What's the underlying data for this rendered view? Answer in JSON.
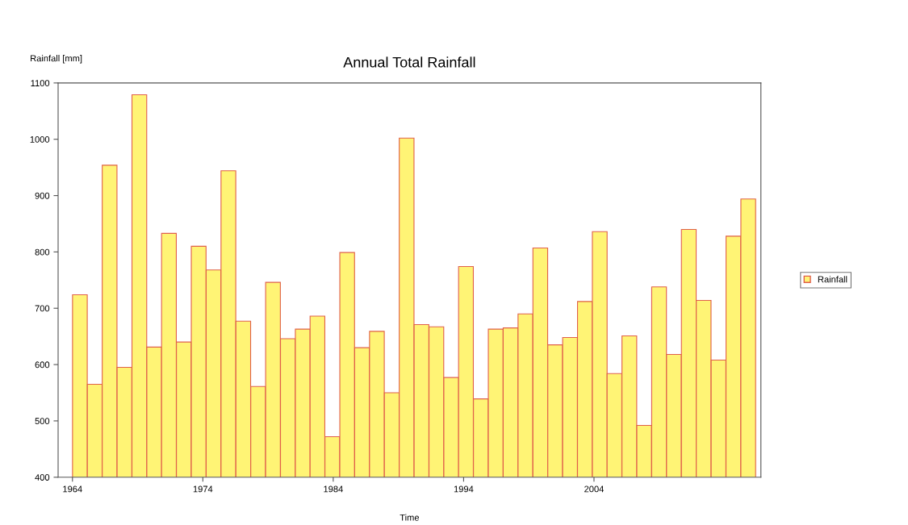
{
  "chart_data": {
    "type": "bar",
    "title": "Annual Total Rainfall",
    "ylabel": "Rainfall [mm]",
    "xlabel": "Time",
    "x": [
      1964.57,
      1965.71,
      1966.85,
      1967.99,
      1969.13,
      1970.27,
      1971.4,
      1972.54,
      1973.68,
      1974.82,
      1975.96,
      1977.1,
      1978.24,
      1979.38,
      1980.52,
      1981.66,
      1982.79,
      1983.93,
      1985.07,
      1986.21,
      1987.35,
      1988.49,
      1989.63,
      1990.77,
      1991.91,
      1993.05,
      1994.18,
      1995.32,
      1996.46,
      1997.6,
      1998.74,
      1999.88,
      2001.02,
      2002.16,
      2003.3,
      2004.44,
      2005.57,
      2006.71,
      2007.85,
      2008.99,
      2010.13,
      2011.27,
      2012.41,
      2013.55,
      2014.69,
      2015.83
    ],
    "series": [
      {
        "name": "Rainfall",
        "color": "#fff475",
        "values": [
          724,
          565,
          954,
          595,
          1079,
          631,
          833,
          640,
          810,
          768,
          944,
          677,
          561,
          746,
          646,
          663,
          686,
          472,
          799,
          630,
          659,
          550,
          1002,
          671,
          667,
          577,
          774,
          539,
          663,
          665,
          690,
          807,
          635,
          648,
          712,
          836,
          584,
          651,
          492,
          738,
          618,
          840,
          714,
          608,
          828,
          894
        ]
      }
    ],
    "xlim": [
      1962.9,
      2016.8
    ],
    "xticks": [
      1964,
      1974,
      1984,
      1994,
      2004
    ],
    "ylim": [
      400,
      1100
    ],
    "yticks": [
      400,
      500,
      600,
      700,
      800,
      900,
      1000,
      1100
    ],
    "grid": false,
    "legend": "right"
  }
}
